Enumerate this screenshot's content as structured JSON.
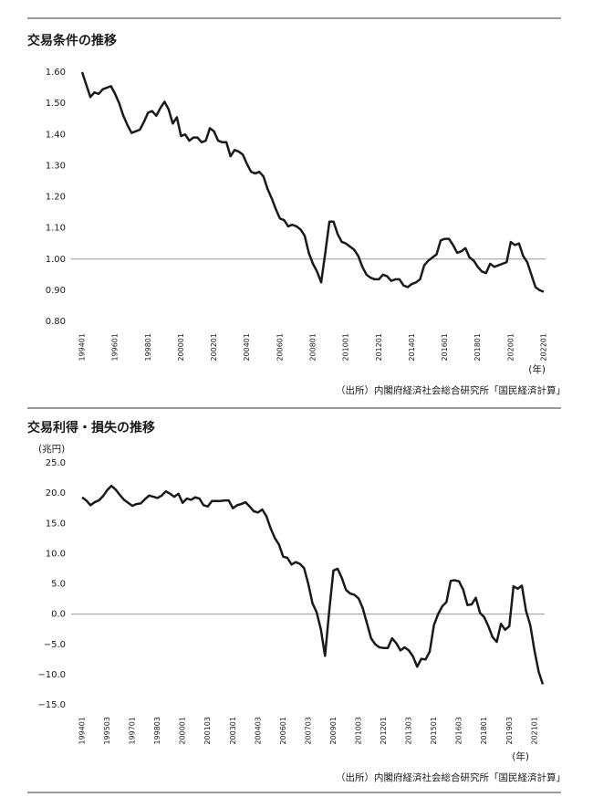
{
  "chart_data": [
    {
      "type": "line",
      "title": "交易条件の推移",
      "x_label": "(年)",
      "source": "（出所）内閣府経済社会総合研究所「国民経済計算」",
      "categories": [
        "199401",
        null,
        null,
        null,
        null,
        null,
        null,
        null,
        "199601",
        null,
        null,
        null,
        null,
        null,
        null,
        null,
        "199801",
        null,
        null,
        null,
        null,
        null,
        null,
        null,
        "200001",
        null,
        null,
        null,
        null,
        null,
        null,
        null,
        "200201",
        null,
        null,
        null,
        null,
        null,
        null,
        null,
        "200401",
        null,
        null,
        null,
        null,
        null,
        null,
        null,
        "200601",
        null,
        null,
        null,
        null,
        null,
        null,
        null,
        "200801",
        null,
        null,
        null,
        null,
        null,
        null,
        null,
        "201001",
        null,
        null,
        null,
        null,
        null,
        null,
        null,
        "201201",
        null,
        null,
        null,
        null,
        null,
        null,
        null,
        "201401",
        null,
        null,
        null,
        null,
        null,
        null,
        null,
        "201601",
        null,
        null,
        null,
        null,
        null,
        null,
        null,
        "201801",
        null,
        null,
        null,
        null,
        null,
        null,
        null,
        "202001",
        null,
        null,
        null,
        null,
        null,
        null,
        null,
        "202201"
      ],
      "values": [
        1.6,
        1.56,
        1.52,
        1.535,
        1.53,
        1.545,
        1.55,
        1.555,
        1.53,
        1.5,
        1.46,
        1.43,
        1.405,
        1.41,
        1.415,
        1.44,
        1.47,
        1.475,
        1.46,
        1.485,
        1.505,
        1.48,
        1.435,
        1.455,
        1.395,
        1.4,
        1.38,
        1.39,
        1.39,
        1.375,
        1.38,
        1.42,
        1.41,
        1.38,
        1.375,
        1.375,
        1.33,
        1.35,
        1.345,
        1.335,
        1.305,
        1.28,
        1.275,
        1.28,
        1.265,
        1.225,
        1.195,
        1.16,
        1.13,
        1.125,
        1.105,
        1.11,
        1.105,
        1.095,
        1.075,
        1.02,
        0.985,
        0.96,
        0.925,
        1.02,
        1.12,
        1.12,
        1.08,
        1.055,
        1.05,
        1.04,
        1.03,
        1.01,
        0.975,
        0.95,
        0.94,
        0.935,
        0.935,
        0.95,
        0.945,
        0.93,
        0.935,
        0.935,
        0.915,
        0.91,
        0.92,
        0.925,
        0.935,
        0.98,
        0.995,
        1.005,
        1.015,
        1.06,
        1.065,
        1.065,
        1.045,
        1.02,
        1.025,
        1.035,
        1.005,
        0.995,
        0.975,
        0.96,
        0.955,
        0.985,
        0.975,
        0.98,
        0.985,
        0.99,
        1.055,
        1.045,
        1.05,
        1.01,
        0.99,
        0.95,
        0.91,
        0.9,
        0.895
      ],
      "color": "#1a1a1a",
      "reference_line": 1,
      "ylim": [
        0.8,
        1.6
      ],
      "yticks": [
        {
          "value": 0.8,
          "label": "0.80"
        },
        {
          "value": 0.9,
          "label": "0.90"
        },
        {
          "value": 1,
          "label": "1.00"
        },
        {
          "value": 1.1,
          "label": "1.10"
        },
        {
          "value": 1.2,
          "label": "1.20"
        },
        {
          "value": 1.3,
          "label": "1.30"
        },
        {
          "value": 1.4,
          "label": "1.40"
        },
        {
          "value": 1.5,
          "label": "1.50"
        },
        {
          "value": 1.6,
          "label": "1.60"
        }
      ]
    },
    {
      "type": "line",
      "title": "交易利得・損失の推移",
      "y_label": "(兆円)",
      "x_label": "(年)",
      "source": "（出所）内閣府経済社会総合研究所「国民経済計算」",
      "categories": [
        "199401",
        null,
        null,
        null,
        null,
        null,
        "199503",
        null,
        null,
        null,
        null,
        null,
        "199701",
        null,
        null,
        null,
        null,
        null,
        "199803",
        null,
        null,
        null,
        null,
        null,
        "200001",
        null,
        null,
        null,
        null,
        null,
        "200103",
        null,
        null,
        null,
        null,
        null,
        "200301",
        null,
        null,
        null,
        null,
        null,
        "200403",
        null,
        null,
        null,
        null,
        null,
        "200601",
        null,
        null,
        null,
        null,
        null,
        "200703",
        null,
        null,
        null,
        null,
        null,
        "200901",
        null,
        null,
        null,
        null,
        null,
        "201003",
        null,
        null,
        null,
        null,
        null,
        "201201",
        null,
        null,
        null,
        null,
        null,
        "201303",
        null,
        null,
        null,
        null,
        null,
        "201501",
        null,
        null,
        null,
        null,
        null,
        "201603",
        null,
        null,
        null,
        null,
        null,
        "201801",
        null,
        null,
        null,
        null,
        null,
        "201903",
        null,
        null,
        null,
        null,
        null,
        "202101",
        null,
        null
      ],
      "values": [
        19.3,
        18.8,
        18.0,
        18.5,
        18.8,
        19.5,
        20.5,
        21.2,
        20.6,
        19.7,
        18.9,
        18.4,
        17.9,
        18.2,
        18.3,
        19.0,
        19.6,
        19.4,
        19.2,
        19.6,
        20.3,
        19.9,
        19.4,
        19.9,
        18.4,
        19.1,
        18.9,
        19.3,
        19.1,
        18.0,
        17.8,
        18.7,
        18.7,
        18.7,
        18.8,
        18.8,
        17.5,
        18.0,
        18.2,
        18.5,
        17.8,
        17.0,
        16.8,
        17.3,
        16.2,
        14.2,
        12.6,
        11.5,
        9.5,
        9.3,
        8.2,
        8.6,
        8.3,
        7.6,
        5.0,
        1.8,
        0.3,
        -2.5,
        -6.9,
        0.5,
        7.2,
        7.5,
        6.0,
        4.0,
        3.4,
        3.2,
        2.6,
        1.0,
        -1.5,
        -4.0,
        -5.0,
        -5.5,
        -5.6,
        -5.6,
        -4.0,
        -4.8,
        -6.0,
        -5.5,
        -6.0,
        -7.0,
        -8.7,
        -7.4,
        -7.5,
        -6.2,
        -1.8,
        0.0,
        1.3,
        2.0,
        5.5,
        5.6,
        5.4,
        4.0,
        1.5,
        1.6,
        2.7,
        0.2,
        -0.5,
        -2.0,
        -3.8,
        -4.6,
        -1.6,
        -2.6,
        -2.0,
        4.6,
        4.2,
        4.7,
        0.5,
        -1.8,
        -6.0,
        -9.5,
        -11.6
      ],
      "color": "#1a1a1a",
      "reference_line": 0,
      "ylim": [
        -15,
        25
      ],
      "yticks": [
        {
          "value": -15,
          "label": "−15.0"
        },
        {
          "value": -10,
          "label": "−10.0"
        },
        {
          "value": -5,
          "label": "−5.0"
        },
        {
          "value": 0,
          "label": "0.0"
        },
        {
          "value": 5,
          "label": "5.0"
        },
        {
          "value": 10,
          "label": "10.0"
        },
        {
          "value": 15,
          "label": "15.0"
        },
        {
          "value": 20,
          "label": "20.0"
        },
        {
          "value": 25,
          "label": "25.0"
        }
      ]
    }
  ]
}
